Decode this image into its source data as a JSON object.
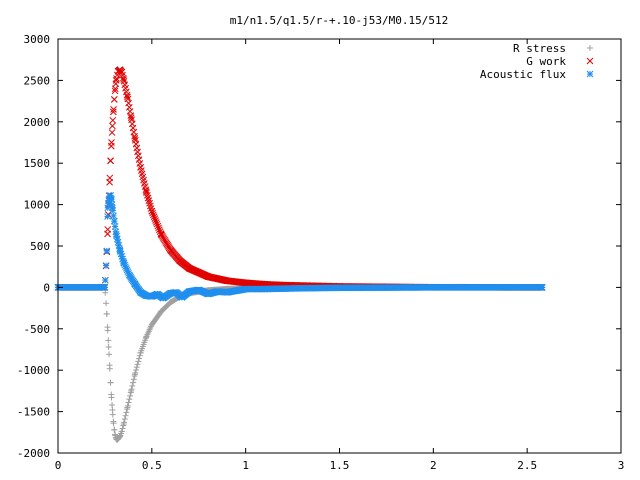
{
  "chart_data": {
    "type": "scatter",
    "title": "m1/n1.5/q1.5/r-+.10-j53/M0.15/512",
    "xlabel": "",
    "ylabel": "",
    "xlim": [
      0,
      3
    ],
    "ylim": [
      -2000,
      3000
    ],
    "xticks": [
      0,
      0.5,
      1,
      1.5,
      2,
      2.5,
      3
    ],
    "xtick_labels": [
      "0",
      "0.5",
      "1",
      "1.5",
      "2",
      "2.5",
      "3"
    ],
    "yticks": [
      -2000,
      -1500,
      -1000,
      -500,
      0,
      500,
      1000,
      1500,
      2000,
      2500,
      3000
    ],
    "ytick_labels": [
      "-2000",
      "-1500",
      "-1000",
      "-500",
      "0",
      "500",
      "1000",
      "1500",
      "2000",
      "2500",
      "3000"
    ],
    "grid": false,
    "legend": "top-right",
    "series": [
      {
        "name": "R stress",
        "marker": "plus",
        "color": "#a0a0a0",
        "x": [
          0.0,
          0.25,
          0.26,
          0.265,
          0.27,
          0.275,
          0.28,
          0.285,
          0.29,
          0.295,
          0.3,
          0.305,
          0.31,
          0.315,
          0.32,
          0.33,
          0.34,
          0.35,
          0.37,
          0.39,
          0.41,
          0.44,
          0.47,
          0.5,
          0.55,
          0.6,
          0.65,
          0.7,
          0.8,
          0.9,
          1.0,
          1.2,
          1.5,
          2.0,
          2.58
        ],
        "y": [
          0,
          0,
          -320,
          -520,
          -720,
          -940,
          -1150,
          -1330,
          -1480,
          -1620,
          -1720,
          -1790,
          -1830,
          -1840,
          -1830,
          -1800,
          -1740,
          -1650,
          -1450,
          -1250,
          -1050,
          -790,
          -600,
          -450,
          -290,
          -180,
          -110,
          -70,
          -35,
          -18,
          -10,
          -4,
          -1,
          0,
          0
        ]
      },
      {
        "name": "G work",
        "marker": "cross",
        "color": "#e00000",
        "x": [
          0.0,
          0.25,
          0.26,
          0.265,
          0.27,
          0.275,
          0.28,
          0.285,
          0.29,
          0.295,
          0.3,
          0.305,
          0.31,
          0.32,
          0.33,
          0.34,
          0.35,
          0.37,
          0.39,
          0.41,
          0.44,
          0.47,
          0.5,
          0.55,
          0.6,
          0.65,
          0.7,
          0.8,
          0.9,
          1.0,
          1.1,
          1.2,
          1.5,
          2.0,
          2.58
        ],
        "y": [
          0,
          0,
          430,
          700,
          1000,
          1270,
          1530,
          1750,
          1950,
          2120,
          2270,
          2400,
          2500,
          2610,
          2630,
          2600,
          2510,
          2300,
          2050,
          1800,
          1450,
          1160,
          920,
          640,
          450,
          320,
          230,
          130,
          80,
          55,
          38,
          28,
          12,
          2,
          0
        ]
      },
      {
        "name": "Acoustic flux",
        "marker": "star",
        "color": "#1f8fef",
        "x": [
          0.0,
          0.25,
          0.26,
          0.265,
          0.27,
          0.275,
          0.28,
          0.285,
          0.29,
          0.3,
          0.31,
          0.33,
          0.35,
          0.38,
          0.41,
          0.44,
          0.47,
          0.5,
          0.53,
          0.56,
          0.6,
          0.63,
          0.66,
          0.7,
          0.75,
          0.8,
          0.85,
          0.9,
          0.95,
          1.0,
          1.1,
          1.2,
          1.3,
          1.5,
          2.0,
          2.58
        ],
        "y": [
          0,
          0,
          440,
          960,
          1050,
          1100,
          1110,
          1060,
          960,
          800,
          640,
          450,
          300,
          150,
          40,
          -60,
          -100,
          -110,
          -80,
          -130,
          -70,
          -60,
          -120,
          -50,
          -30,
          -80,
          -50,
          -60,
          -40,
          -20,
          -20,
          -15,
          -10,
          -5,
          0,
          0
        ]
      }
    ]
  }
}
